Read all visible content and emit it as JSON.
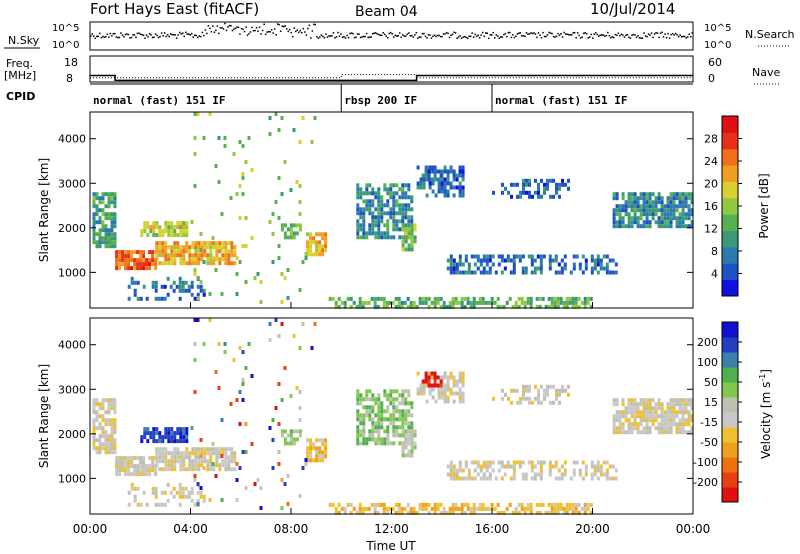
{
  "header": {
    "title": "Fort Hays East (fitACF)",
    "beam": "Beam 04",
    "date": "10/Jul/2014"
  },
  "colors": {
    "power_scale": [
      "#1010e0",
      "#1e50c8",
      "#2a7ab0",
      "#3a9a78",
      "#58b050",
      "#90c840",
      "#d8d030",
      "#f0a020",
      "#f07018",
      "#e83018",
      "#e01010"
    ],
    "velocity_scale": [
      "#1010d0",
      "#2040c0",
      "#3a80a8",
      "#50b050",
      "#80c850",
      "#c0c0b0",
      "#c8c8c8",
      "#f0c030",
      "#f0a020",
      "#f07010",
      "#e84010",
      "#e01010"
    ]
  },
  "chart_data": [
    {
      "type": "line",
      "panel": "noise",
      "left_label": "N.Sky",
      "right_label": "N.Search",
      "left_ticks": [
        "10^5",
        "10^0"
      ],
      "right_ticks": [
        "10^5",
        "10^0"
      ],
      "x_range_hours": [
        0,
        24
      ],
      "level": 0.55
    },
    {
      "type": "line",
      "panel": "freq-nave",
      "left_label": "Freq.",
      "left_unit": "[MHz]",
      "right_label": "Nave",
      "left_ticks": [
        "18",
        "8"
      ],
      "right_ticks": [
        "60",
        "0"
      ],
      "ylim_left": [
        8,
        18
      ],
      "ylim_right": [
        0,
        60
      ],
      "freq": {
        "x": [
          0,
          1.0,
          1.0,
          13.0,
          13.0,
          24
        ],
        "y": [
          10.5,
          10.5,
          8.6,
          8.6,
          10.5,
          10.5
        ]
      },
      "nave": {
        "x": [
          0,
          10.0,
          10.0,
          13.0,
          13.0,
          24
        ],
        "y": [
          10,
          10,
          17,
          17,
          10,
          10
        ]
      }
    },
    {
      "type": "table",
      "panel": "cpid",
      "label": "CPID",
      "segments": [
        {
          "text": "normal (fast) 151 IF",
          "start": 0,
          "end": 10
        },
        {
          "text": "rbsp 200 IF",
          "start": 10,
          "end": 16
        },
        {
          "text": "normal (fast) 151 IF",
          "start": 16,
          "end": 24
        }
      ]
    },
    {
      "type": "heatmap",
      "panel": "power",
      "ylabel": "Slant Range [km]",
      "ylim": [
        200,
        4600
      ],
      "y_ticks": [
        "1000",
        "2000",
        "3000",
        "4000"
      ],
      "x_range_hours": [
        0,
        24
      ],
      "colorbar": {
        "label": "Power [dB]",
        "ticks": [
          "4",
          "8",
          "12",
          "16",
          "20",
          "24",
          "28"
        ],
        "range": [
          0,
          30
        ]
      }
    },
    {
      "type": "heatmap",
      "panel": "velocity",
      "ylabel": "Slant Range [km]",
      "xlabel": "Time UT",
      "ylim": [
        200,
        4600
      ],
      "y_ticks": [
        "1000",
        "2000",
        "3000",
        "4000"
      ],
      "x_ticks": [
        "00:00",
        "04:00",
        "08:00",
        "12:00",
        "16:00",
        "20:00",
        "00:00"
      ],
      "x_range_hours": [
        0,
        24
      ],
      "colorbar": {
        "label": "Velocity [m s",
        "label_sup": "-1",
        "label_end": "]",
        "ticks": [
          "200",
          "100",
          "50",
          "15",
          "-15",
          "-50",
          "-100",
          "-200"
        ]
      }
    }
  ]
}
